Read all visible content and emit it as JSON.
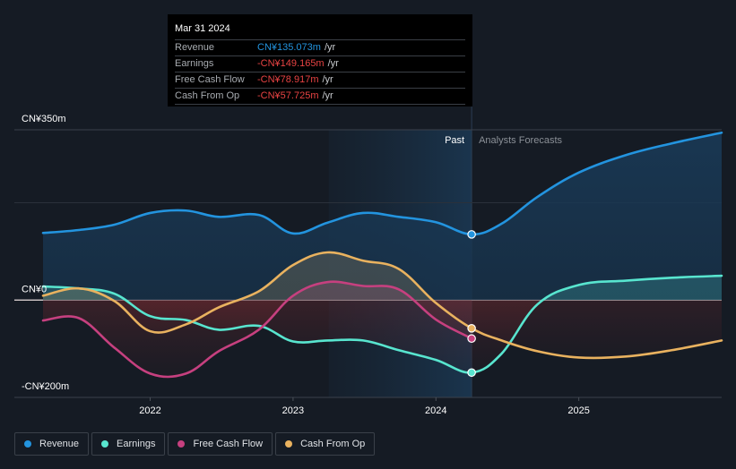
{
  "tooltip": {
    "date": "Mar 31 2024",
    "rows": [
      {
        "label": "Revenue",
        "value": "CN¥135.073m",
        "unit": "/yr",
        "color": "#2394df"
      },
      {
        "label": "Earnings",
        "value": "-CN¥149.165m",
        "unit": "/yr",
        "color": "#e84343"
      },
      {
        "label": "Free Cash Flow",
        "value": "-CN¥78.917m",
        "unit": "/yr",
        "color": "#e84343"
      },
      {
        "label": "Cash From Op",
        "value": "-CN¥57.725m",
        "unit": "/yr",
        "color": "#e84343"
      }
    ]
  },
  "annotations": {
    "past": "Past",
    "forecast": "Analysts Forecasts"
  },
  "legend": [
    {
      "label": "Revenue",
      "color": "#2394df"
    },
    {
      "label": "Earnings",
      "color": "#58e5cf"
    },
    {
      "label": "Free Cash Flow",
      "color": "#c6407f"
    },
    {
      "label": "Cash From Op",
      "color": "#e9b25f"
    }
  ],
  "chart_data": {
    "type": "line",
    "title": "",
    "xlabel": "",
    "ylabel": "",
    "y_tick_labels": [
      {
        "value": 350,
        "label": "CN¥350m"
      },
      {
        "value": 0,
        "label": "CN¥0"
      },
      {
        "value": -200,
        "label": "-CN¥200m"
      }
    ],
    "x_tick_labels": [
      {
        "value": 2022,
        "label": "2022"
      },
      {
        "value": 2023,
        "label": "2023"
      },
      {
        "value": 2024,
        "label": "2024"
      },
      {
        "value": 2025,
        "label": "2025"
      }
    ],
    "ylim": [
      -200,
      350
    ],
    "xlim": [
      2021.25,
      2026.0
    ],
    "grid": true,
    "past_region_start": 2023.25,
    "forecast_start": 2024.25,
    "legend_position": "bottom-left",
    "units": "CN¥ millions per year",
    "series": [
      {
        "name": "Revenue",
        "color": "#2394df",
        "x": [
          2021.25,
          2021.5,
          2021.75,
          2022.0,
          2022.25,
          2022.48,
          2022.76,
          2023.0,
          2023.24,
          2023.49,
          2023.74,
          2024.0,
          2024.25,
          2024.46,
          2024.71,
          2025.0,
          2025.33,
          2025.65,
          2026.0
        ],
        "values": [
          138,
          144,
          155,
          179,
          184,
          171,
          175,
          137,
          159,
          179,
          171,
          160,
          135,
          157,
          212,
          262,
          298,
          322,
          344
        ]
      },
      {
        "name": "Earnings",
        "color": "#58e5cf",
        "x": [
          2021.25,
          2021.5,
          2021.75,
          2022.0,
          2022.25,
          2022.48,
          2022.76,
          2023.0,
          2023.24,
          2023.49,
          2023.74,
          2024.0,
          2024.25,
          2024.46,
          2024.71,
          2025.0,
          2025.33,
          2025.65,
          2026.0
        ],
        "values": [
          28,
          24,
          13,
          -33,
          -41,
          -61,
          -53,
          -85,
          -83,
          -83,
          -103,
          -123,
          -149,
          -110,
          -9,
          31,
          40,
          46,
          50
        ]
      },
      {
        "name": "Free Cash Flow",
        "color": "#c6407f",
        "x": [
          2021.25,
          2021.5,
          2021.75,
          2022.0,
          2022.25,
          2022.48,
          2022.76,
          2023.0,
          2023.24,
          2023.49,
          2023.74,
          2024.0,
          2024.25
        ],
        "values": [
          -42,
          -37,
          -98,
          -151,
          -151,
          -105,
          -61,
          9,
          37,
          29,
          22,
          -40,
          -79
        ]
      },
      {
        "name": "Cash From Op",
        "color": "#e9b25f",
        "x": [
          2021.25,
          2021.5,
          2021.75,
          2022.0,
          2022.25,
          2022.48,
          2022.76,
          2023.0,
          2023.24,
          2023.49,
          2023.74,
          2024.0,
          2024.25,
          2024.46,
          2024.71,
          2025.0,
          2025.33,
          2025.65,
          2026.0
        ],
        "values": [
          9,
          24,
          -2,
          -64,
          -50,
          -15,
          18,
          72,
          98,
          81,
          64,
          -6,
          -58,
          -83,
          -105,
          -118,
          -116,
          -103,
          -83
        ]
      }
    ]
  }
}
